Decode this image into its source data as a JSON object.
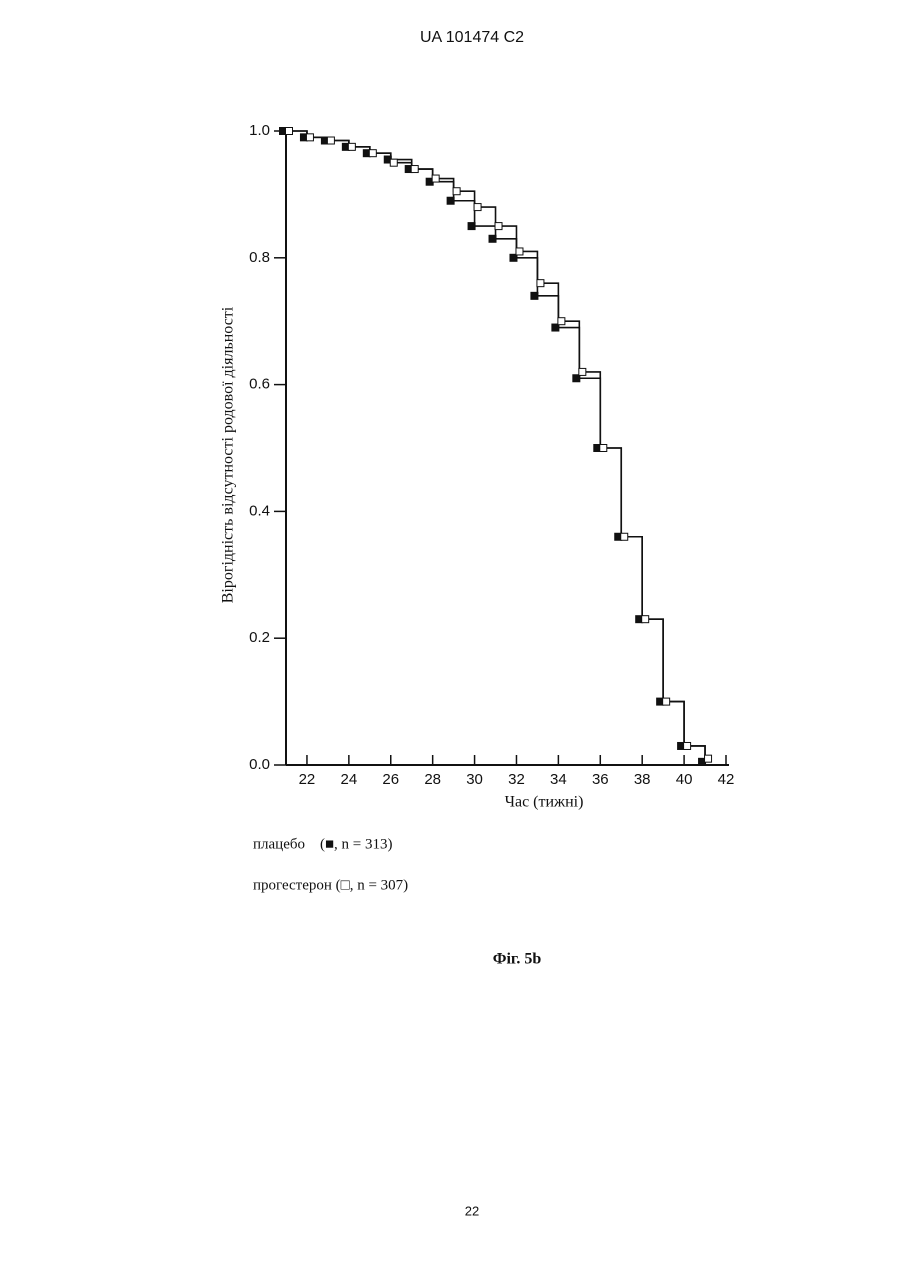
{
  "header": "UA   101474   C2",
  "page_number": "22",
  "caption": "Фіг. 5b",
  "chart_data": {
    "type": "line",
    "step": true,
    "xlabel": "Час (тижні)",
    "ylabel": "Вірогідність відсутності родової діяльності",
    "x": [
      21,
      22,
      23,
      24,
      25,
      26,
      27,
      28,
      29,
      30,
      31,
      32,
      33,
      34,
      35,
      36,
      37,
      38,
      39,
      40,
      41
    ],
    "series": [
      {
        "name": "плацебо    (■, n = 313)",
        "color": "#111111",
        "marker": "filled-square",
        "values": [
          1.0,
          0.99,
          0.985,
          0.975,
          0.965,
          0.955,
          0.94,
          0.92,
          0.89,
          0.85,
          0.83,
          0.8,
          0.74,
          0.69,
          0.61,
          0.5,
          0.36,
          0.23,
          0.1,
          0.03,
          0.005
        ]
      },
      {
        "name": "прогестерон (□, n = 307)",
        "color": "#111111",
        "marker": "open-square",
        "values": [
          1.0,
          0.99,
          0.985,
          0.975,
          0.965,
          0.95,
          0.94,
          0.925,
          0.905,
          0.88,
          0.85,
          0.81,
          0.76,
          0.7,
          0.62,
          0.5,
          0.36,
          0.23,
          0.1,
          0.03,
          0.01
        ]
      }
    ],
    "xlim": [
      21,
      42
    ],
    "ylim": [
      0,
      1
    ],
    "xticks": [
      22,
      24,
      26,
      28,
      30,
      32,
      34,
      36,
      38,
      40,
      42
    ],
    "yticks": [
      {
        "value": 0,
        "label": "0.0"
      },
      {
        "value": 0.2,
        "label": "0.2"
      },
      {
        "value": 0.4,
        "label": "0.4"
      },
      {
        "value": 0.6,
        "label": "0.6"
      },
      {
        "value": 0.8,
        "label": "0.8"
      },
      {
        "value": 1,
        "label": "1.0"
      }
    ],
    "grid": false
  }
}
